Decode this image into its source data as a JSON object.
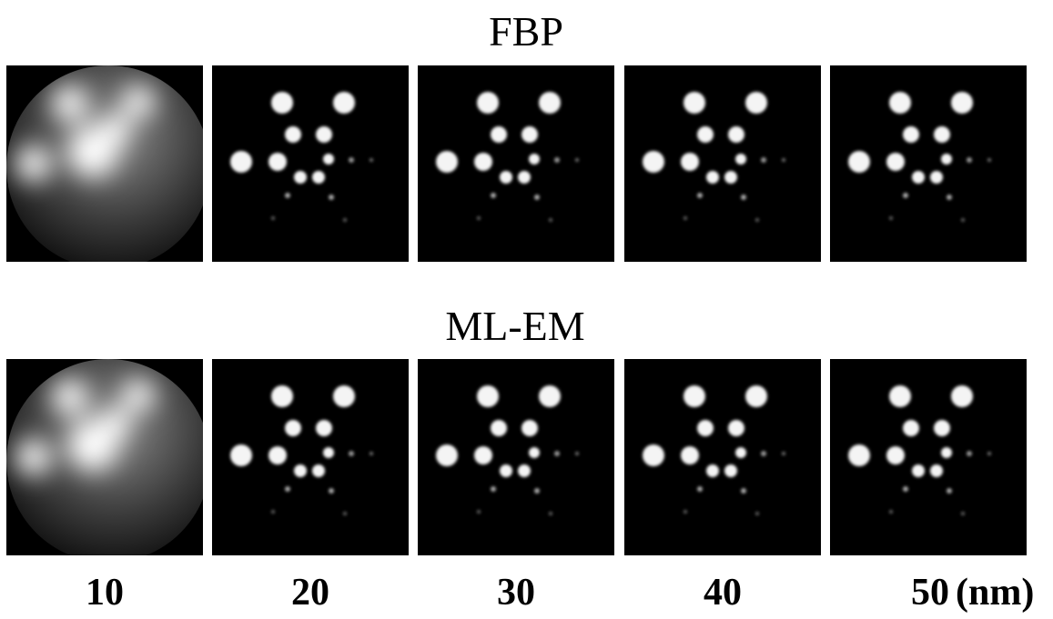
{
  "rows": [
    {
      "title": "FBP"
    },
    {
      "title": "ML-EM"
    }
  ],
  "columns": [
    "10",
    "20",
    "30",
    "40",
    "50"
  ],
  "unit": "(nm)"
}
